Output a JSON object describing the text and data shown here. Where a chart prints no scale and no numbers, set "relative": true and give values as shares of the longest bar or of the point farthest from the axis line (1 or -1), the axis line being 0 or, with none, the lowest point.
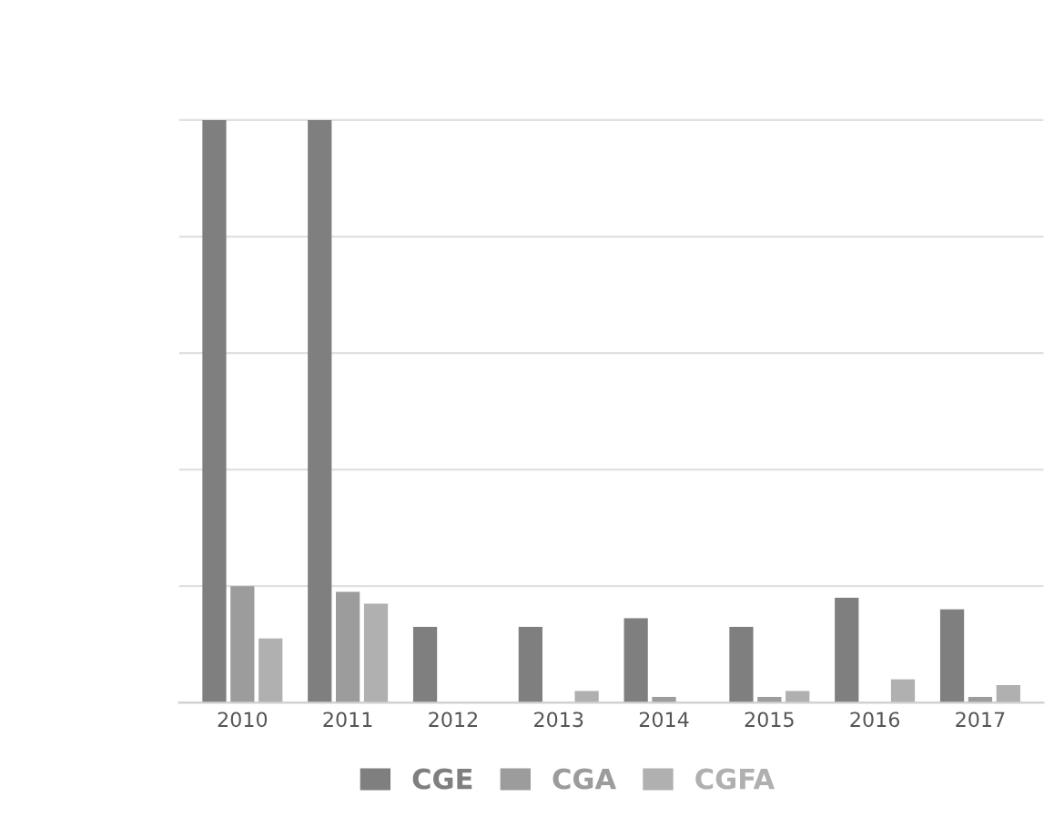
{
  "chart_data": {
    "type": "bar",
    "relative": true,
    "grid": "y",
    "legend": "bottom",
    "categories": [
      "2010",
      "2011",
      "2012",
      "2013",
      "2014",
      "2015",
      "2016",
      "2017"
    ],
    "series": [
      {
        "name": "CGE",
        "color": "#7f7f7f",
        "values": [
          1,
          1,
          0.13,
          0.13,
          0.145,
          0.13,
          0.18,
          0.16
        ]
      },
      {
        "name": "CGA",
        "color": "#9c9c9c",
        "values": [
          0.2,
          0.19,
          null,
          null,
          0.01,
          0.01,
          null,
          0.01
        ]
      },
      {
        "name": "CGFA",
        "color": "#b0b0b0",
        "values": [
          0.11,
          0.17,
          null,
          0.02,
          null,
          0.02,
          0.04,
          0.03
        ]
      }
    ]
  }
}
